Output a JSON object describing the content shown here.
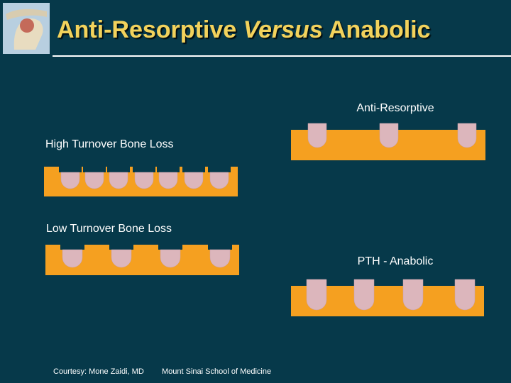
{
  "title": {
    "part1": "Anti-Resorptive",
    "italic": "Versus",
    "part2": "Anabolic"
  },
  "panels": [
    {
      "label": "High Turnover Bone Loss"
    },
    {
      "label": "Low Turnover Bone Loss"
    },
    {
      "label": "Anti-Resorptive"
    },
    {
      "label": "PTH - Anabolic"
    }
  ],
  "footer": {
    "credit": "Courtesy: Mone Zaidi, MD",
    "institution": "Mount Sinai School of Medicine"
  }
}
